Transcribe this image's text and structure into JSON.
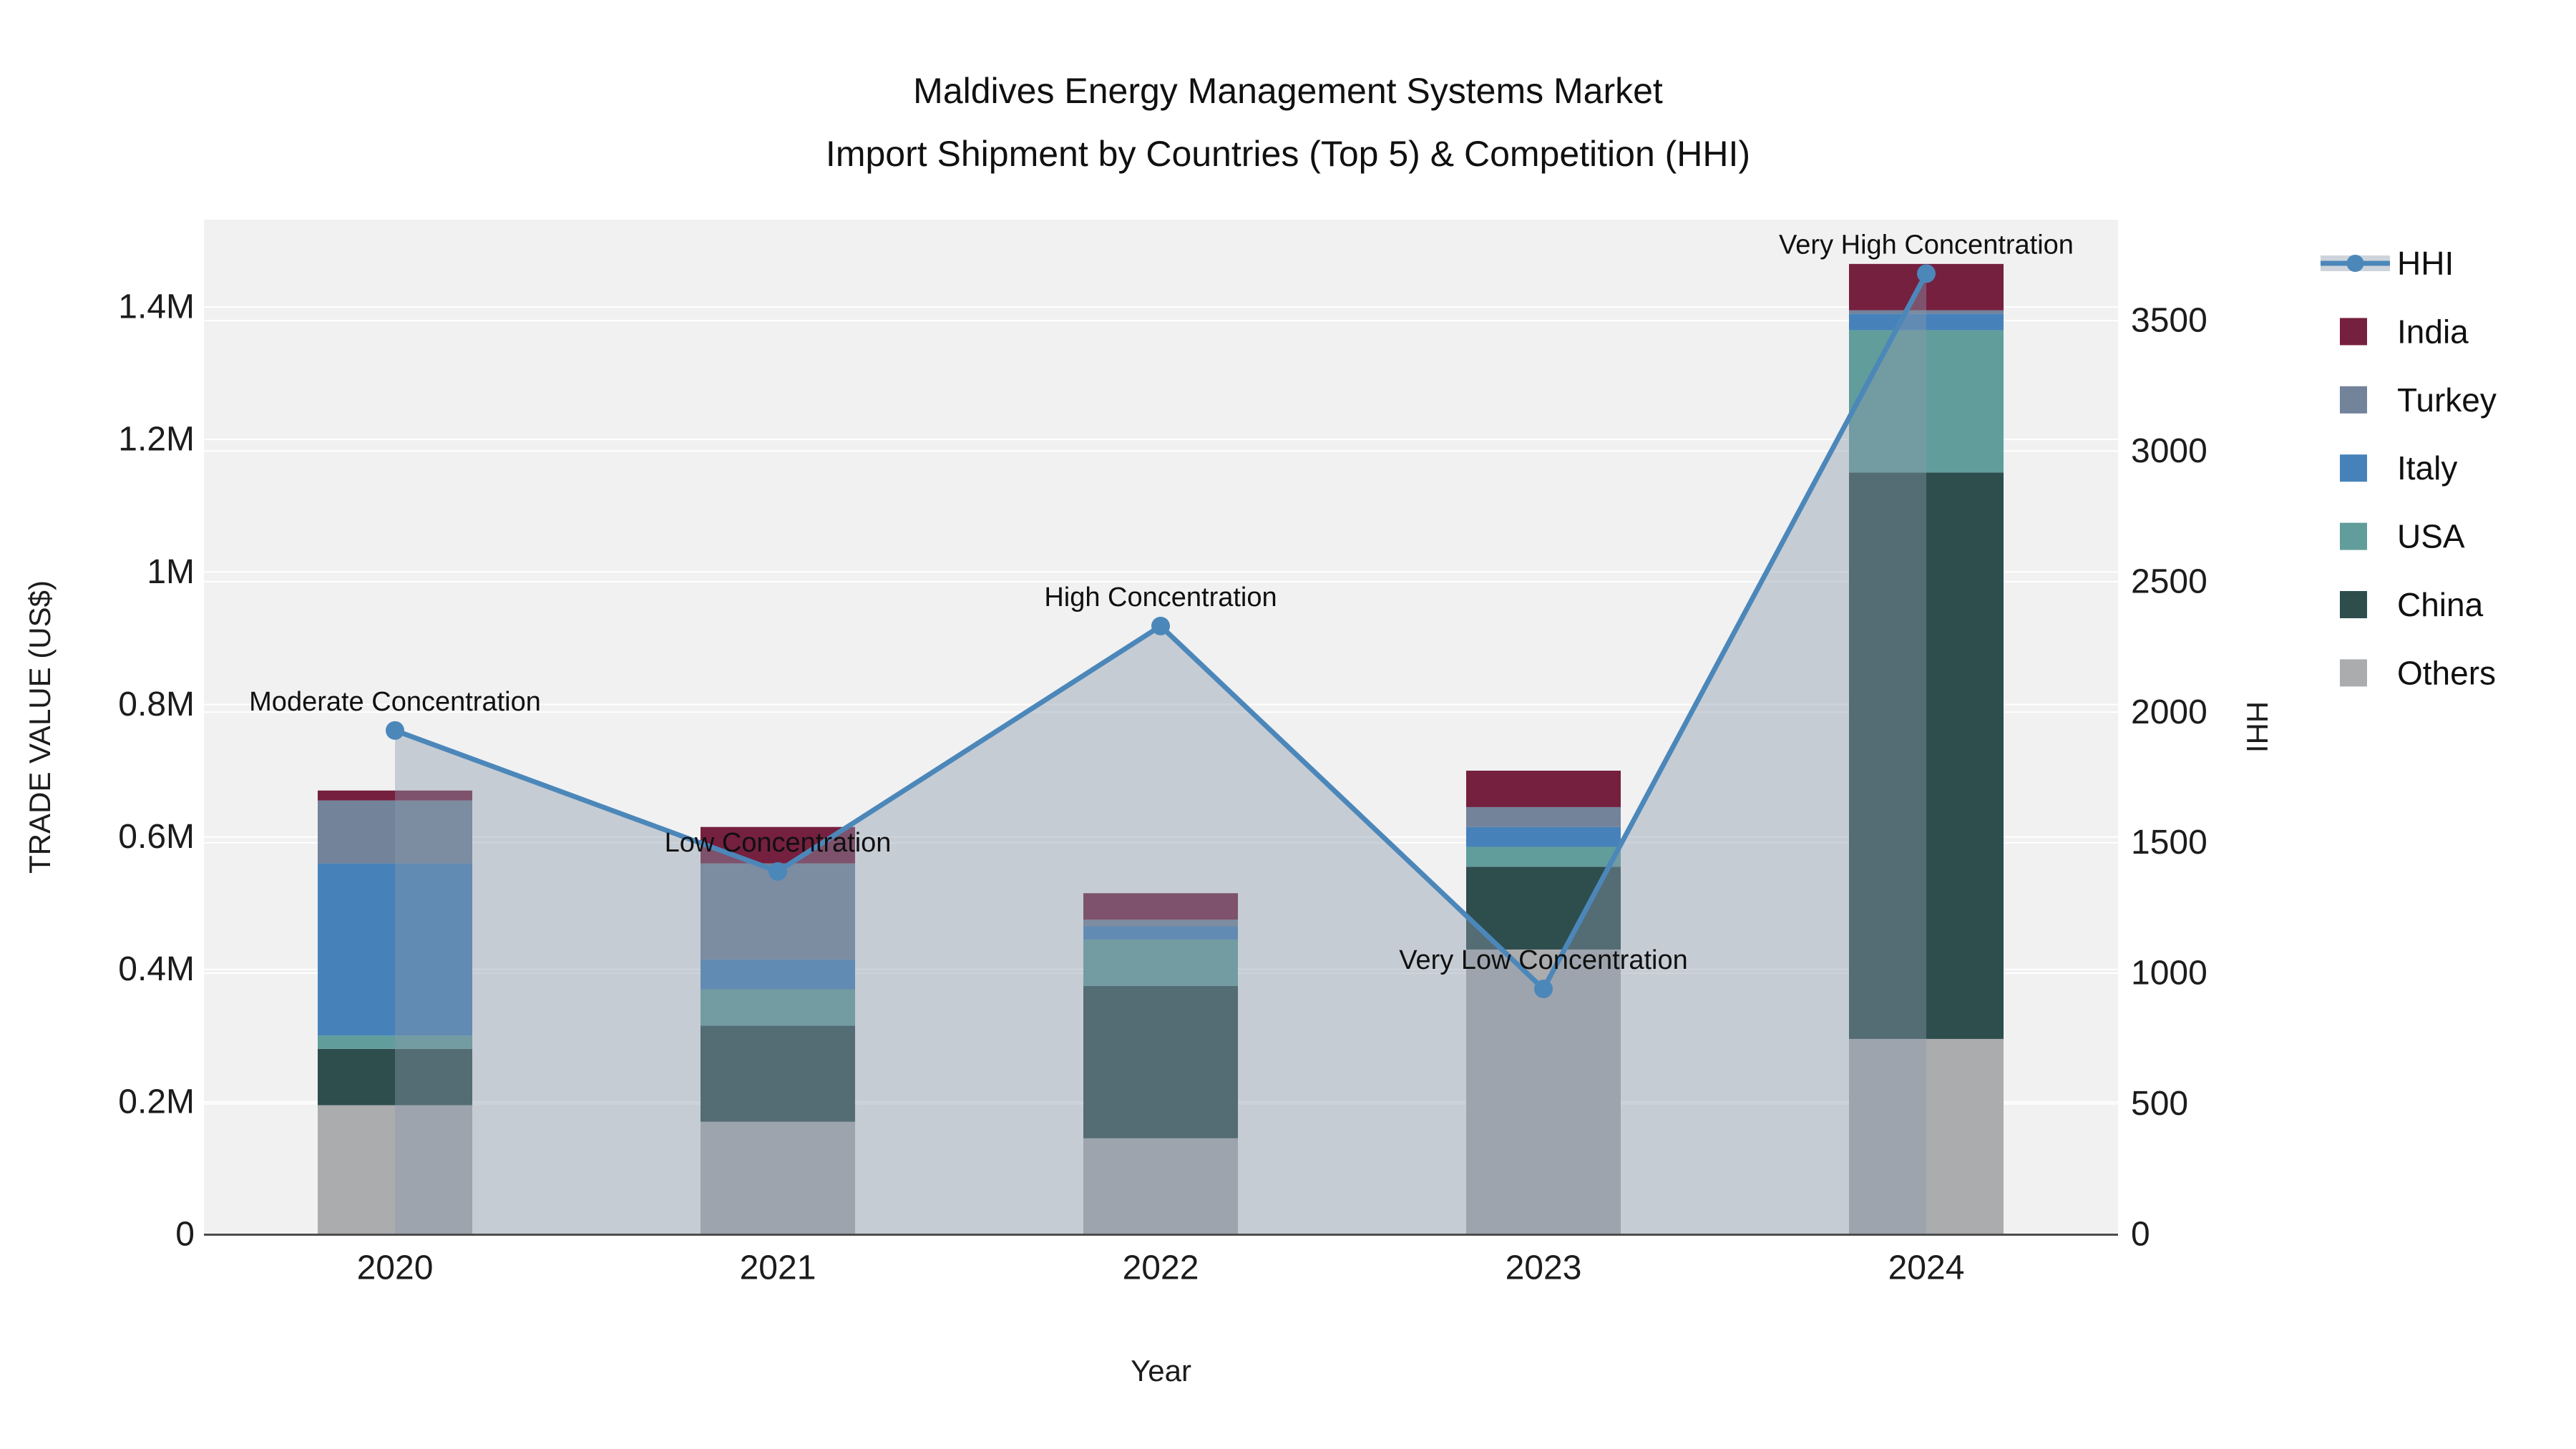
{
  "title": {
    "line1": "Maldives Energy Management Systems Market",
    "line2": "Import Shipment by Countries (Top 5) & Competition (HHI)"
  },
  "chart_data": {
    "type": "bar",
    "subtype": "stacked-bars-with-line-area-overlay",
    "categories": [
      "2020",
      "2021",
      "2022",
      "2023",
      "2024"
    ],
    "xlabel": "Year",
    "ylabel_left": "TRADE VALUE (US$)",
    "ylabel_right": "HHI",
    "units_left": "million US$",
    "ylim_left": [
      0,
      1.53
    ],
    "ylim_right": [
      0,
      3885
    ],
    "grid": "on",
    "yticks_left": {
      "values": [
        0,
        0.2,
        0.4,
        0.6,
        0.8,
        1.0,
        1.2,
        1.4
      ],
      "labels": [
        "0",
        "0.2M",
        "0.4M",
        "0.6M",
        "0.8M",
        "1M",
        "1.2M",
        "1.4M"
      ]
    },
    "yticks_right": {
      "values": [
        0,
        500,
        1000,
        1500,
        2000,
        2500,
        3000,
        3500
      ],
      "labels": [
        "0",
        "500",
        "1000",
        "1500",
        "2000",
        "2500",
        "3000",
        "3500"
      ]
    },
    "series": [
      {
        "name": "Others",
        "color": "#abacae",
        "values": [
          0.195,
          0.17,
          0.145,
          0.43,
          0.295
        ]
      },
      {
        "name": "China",
        "color": "#2e4d4d",
        "values": [
          0.085,
          0.145,
          0.23,
          0.125,
          0.855
        ]
      },
      {
        "name": "USA",
        "color": "#619d9b",
        "values": [
          0.02,
          0.055,
          0.07,
          0.03,
          0.215
        ]
      },
      {
        "name": "Italy",
        "color": "#4682b9",
        "values": [
          0.26,
          0.045,
          0.02,
          0.03,
          0.025
        ]
      },
      {
        "name": "Turkey",
        "color": "#72839a",
        "values": [
          0.095,
          0.145,
          0.01,
          0.03,
          0.005
        ]
      },
      {
        "name": "India",
        "color": "#75203f",
        "values": [
          0.015,
          0.055,
          0.04,
          0.055,
          0.07
        ]
      }
    ],
    "bar_totals": [
      0.67,
      0.615,
      0.515,
      0.7,
      1.465
    ],
    "hhi": {
      "label": "HHI",
      "values": [
        1930,
        1390,
        2330,
        940,
        3680
      ],
      "line_color": "#4c87ba",
      "area_fill": "rgba(139,152,172,0.42)",
      "annotations": [
        "Moderate Concentration",
        "Low Concentration",
        "High Concentration",
        "Very Low Concentration",
        "Very High Concentration"
      ]
    },
    "legend_items": [
      "HHI",
      "India",
      "Turkey",
      "Italy",
      "USA",
      "China",
      "Others"
    ],
    "legend_position": "right-top-outside",
    "colors": {
      "plot_bg": "#f1f1f2",
      "grid": "#ffffff",
      "axis_line": "#4d4d4d",
      "text": "#1c1c1c"
    }
  }
}
